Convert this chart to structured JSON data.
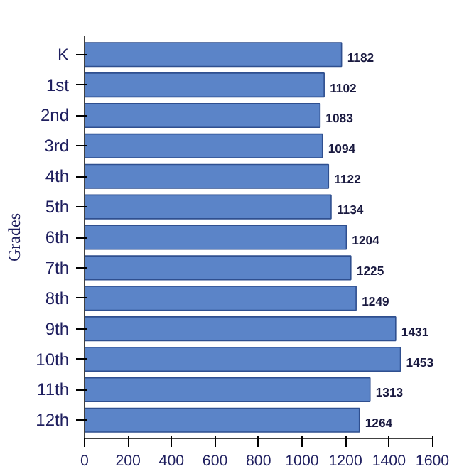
{
  "chart_data": {
    "type": "bar",
    "orientation": "horizontal",
    "ylabel": "Grades",
    "categories": [
      "K",
      "1st",
      "2nd",
      "3rd",
      "4th",
      "5th",
      "6th",
      "7th",
      "8th",
      "9th",
      "10th",
      "11th",
      "12th"
    ],
    "values": [
      1182,
      1102,
      1083,
      1094,
      1122,
      1134,
      1204,
      1225,
      1249,
      1431,
      1453,
      1313,
      1264
    ],
    "color": "#5b84c8",
    "xlim": [
      0,
      1600
    ],
    "xticks": [
      0,
      200,
      400,
      600,
      800,
      1000,
      1200,
      1400,
      1600
    ],
    "data_labels": true,
    "grid": false
  }
}
